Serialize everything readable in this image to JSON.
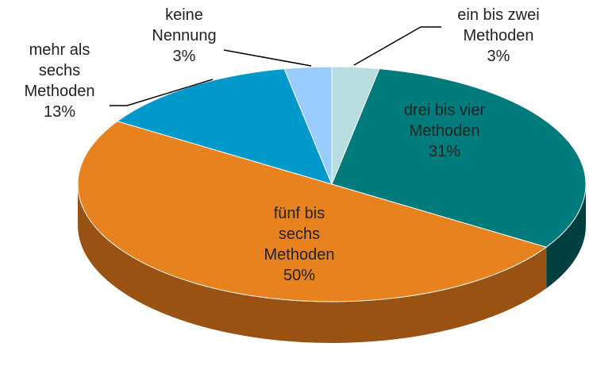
{
  "chart_data": {
    "type": "pie",
    "categories": [
      "ein bis zwei Methoden",
      "drei bis vier Methoden",
      "fünf bis sechs Methoden",
      "mehr als sechs Methoden",
      "keine Nennung"
    ],
    "values": [
      3,
      31,
      50,
      13,
      3
    ],
    "value_labels": [
      "3%",
      "31%",
      "50%",
      "13%",
      "3%"
    ],
    "colors": [
      "#b7dde0",
      "#007b7b",
      "#e8821e",
      "#0099cc",
      "#99ccff"
    ],
    "side_colors": [
      "#7fa8ab",
      "#003f3f",
      "#9a5212",
      "#006688",
      "#6b94c0"
    ]
  }
}
